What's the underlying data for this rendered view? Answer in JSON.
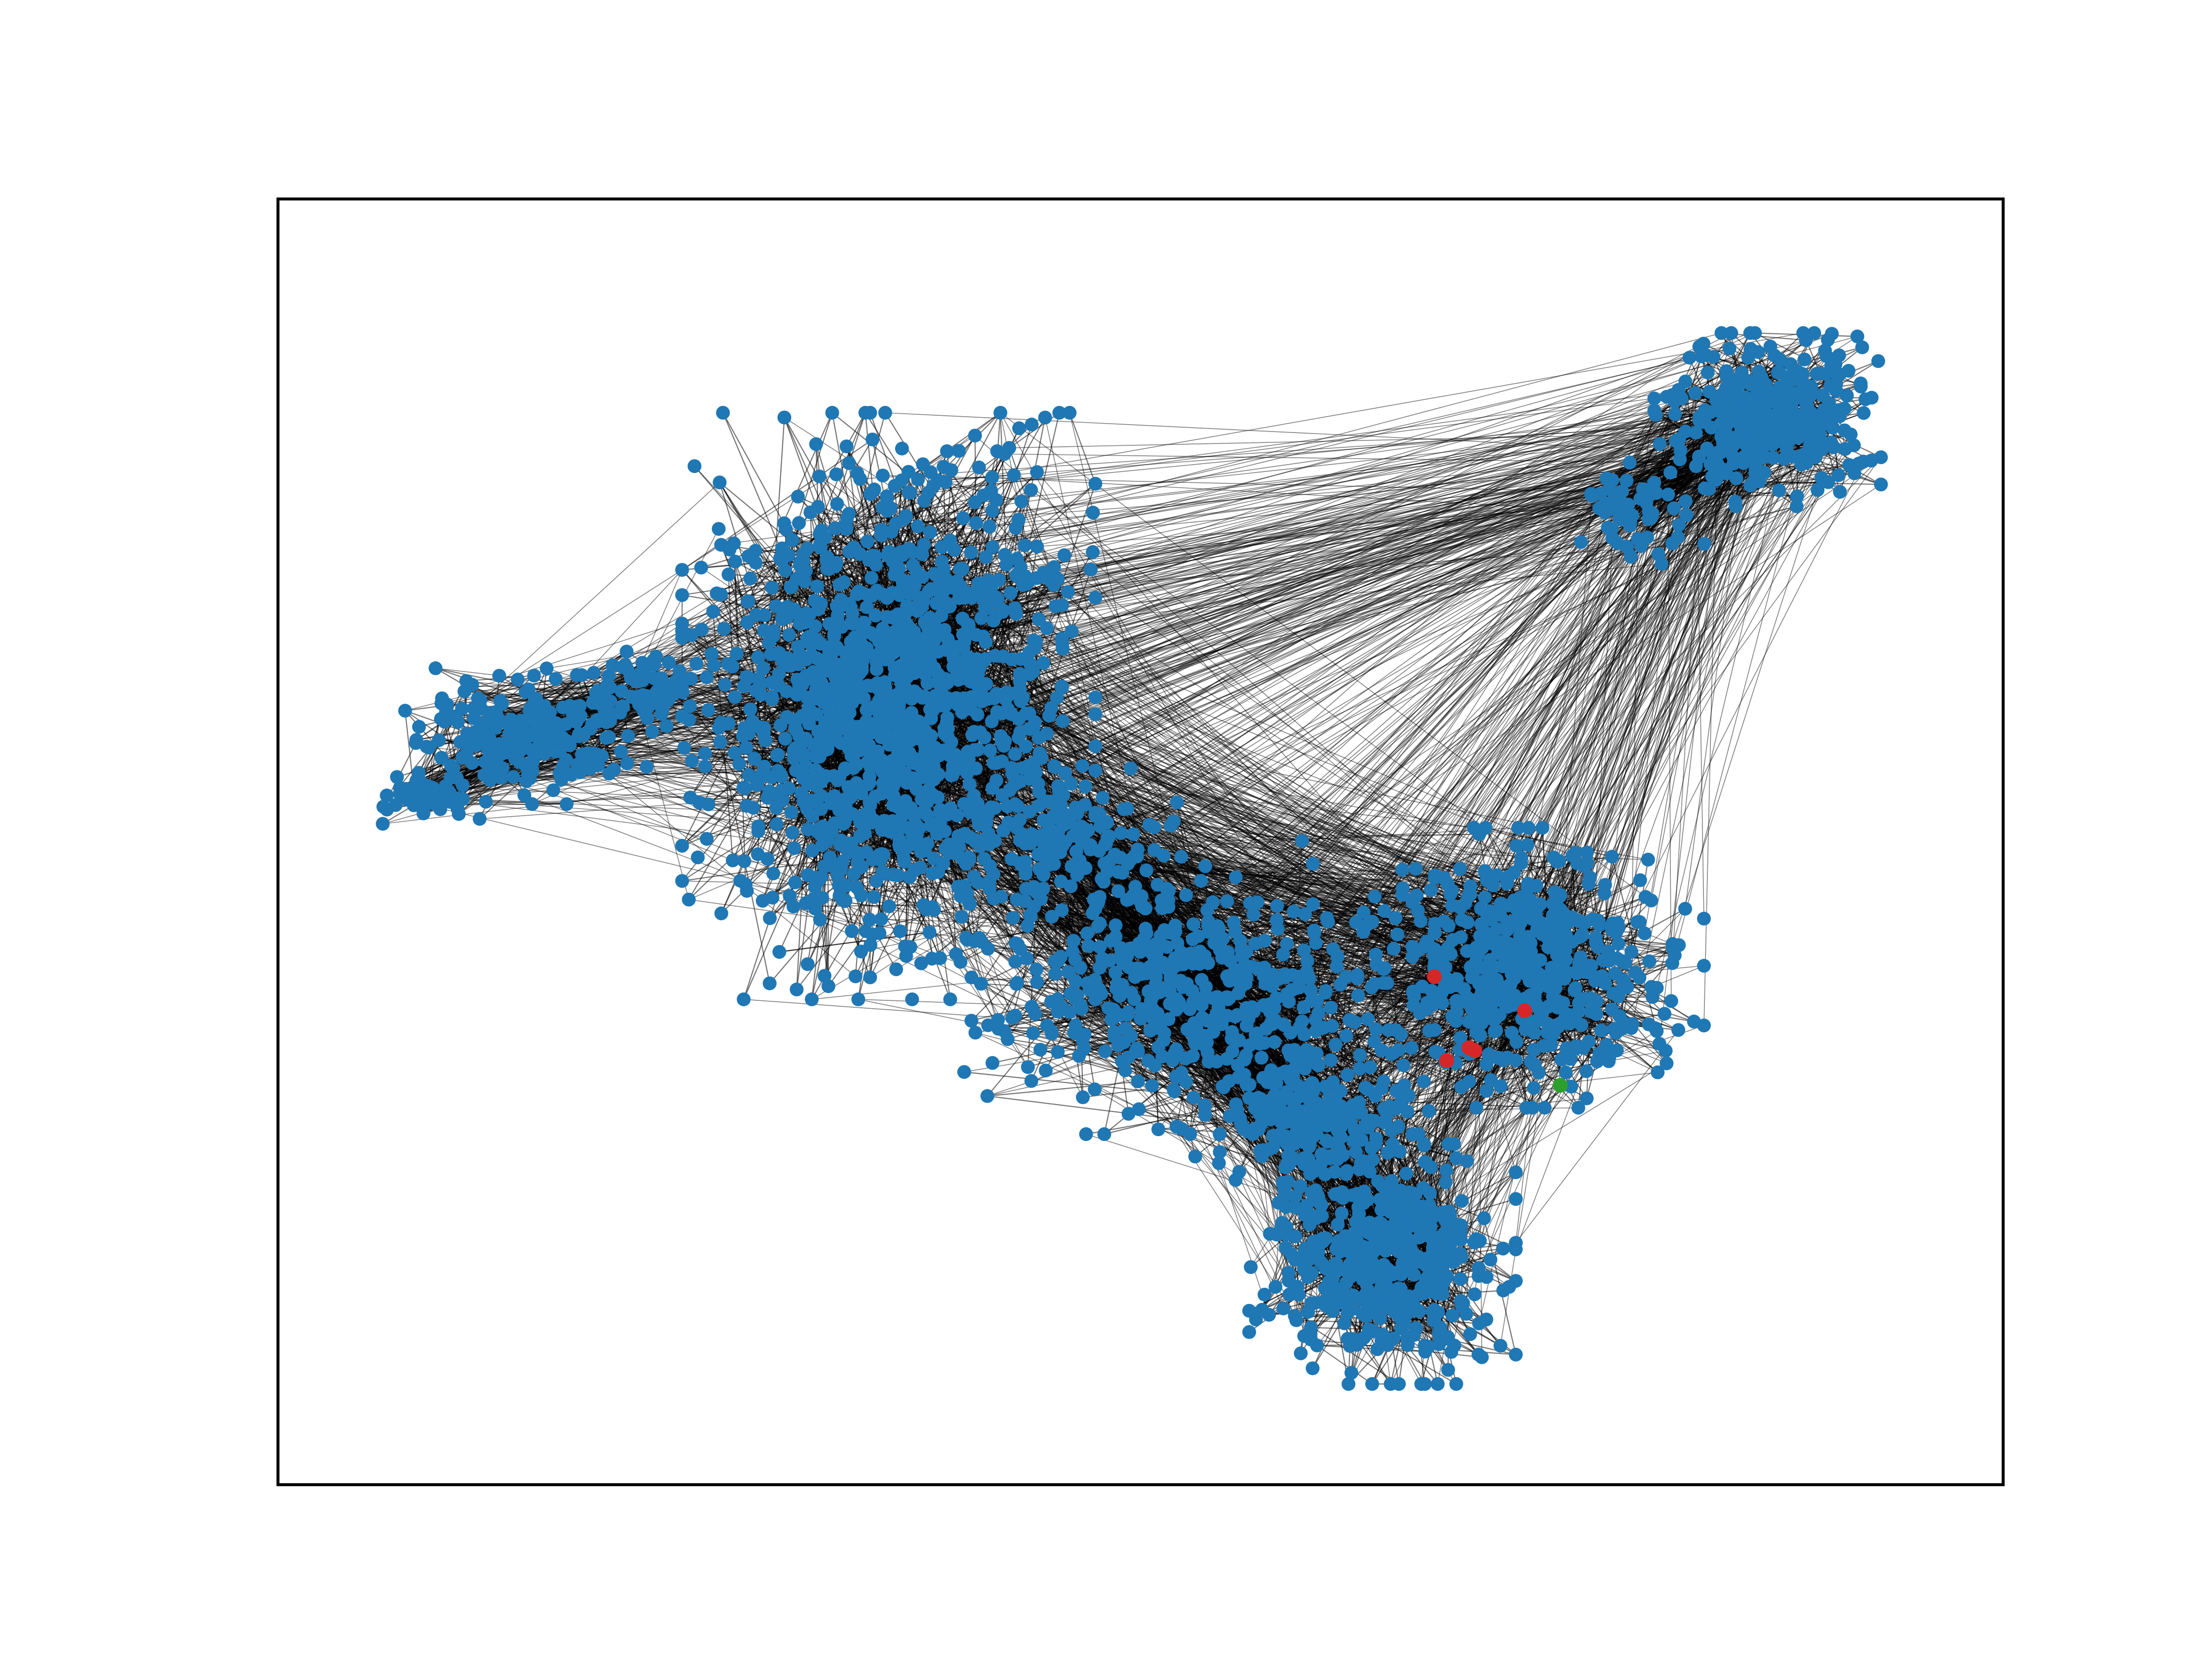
{
  "figure": {
    "background": "#ffffff",
    "frame_color": "#000000",
    "edge_color": "#000000"
  },
  "graph": {
    "kind": "network",
    "axes_ticks": "none",
    "node_colors": {
      "default": "#1f77b4",
      "highlighted": "#d62728",
      "target": "#2ca02c"
    },
    "clusters": [
      {
        "name": "left-wing",
        "density": "medium"
      },
      {
        "name": "central-large",
        "density": "very-high"
      },
      {
        "name": "upper-right",
        "density": "high"
      },
      {
        "name": "right-middle",
        "density": "high"
      },
      {
        "name": "bottom",
        "density": "high"
      },
      {
        "name": "bridge",
        "density": "medium"
      }
    ],
    "highlighted_node_count": 5,
    "target_node_count": 1
  }
}
